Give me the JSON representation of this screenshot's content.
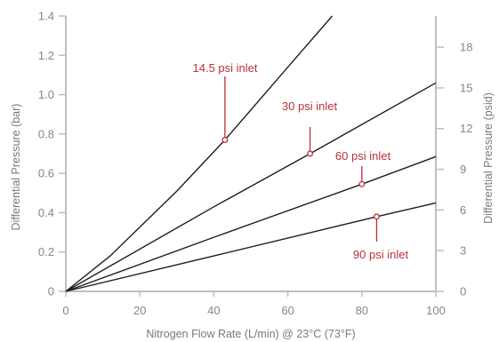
{
  "chart_data": {
    "type": "line",
    "xlabel": "Nitrogen Flow Rate (L/min) @ 23°C (73°F)",
    "ylabel": "Differential Pressure (bar)",
    "y2label": "Differential Pressure (psid)",
    "xlim": [
      0,
      100
    ],
    "ylim": [
      0,
      1.4
    ],
    "y2lim": [
      0,
      20.3
    ],
    "xticks": [
      "0",
      "20",
      "40",
      "60",
      "80",
      "100"
    ],
    "yticks": [
      "0",
      "0.2",
      "0.4",
      "0.6",
      "0.8",
      "1.0",
      "1.2",
      "1.4"
    ],
    "y2ticks": [
      "0",
      "3",
      "6",
      "9",
      "12",
      "15",
      "18"
    ],
    "grid": false,
    "legend": "none",
    "series": [
      {
        "name": "14.5 psi inlet",
        "x": [
          0,
          12,
          30,
          43,
          60,
          72
        ],
        "y": [
          0,
          0.18,
          0.51,
          0.77,
          1.14,
          1.4
        ],
        "label_point": [
          43,
          0.77
        ]
      },
      {
        "name": "30 psi inlet",
        "x": [
          0,
          40,
          66,
          100
        ],
        "y": [
          0,
          0.43,
          0.7,
          1.06
        ],
        "label_point": [
          66,
          0.7
        ]
      },
      {
        "name": "60 psi inlet",
        "x": [
          0,
          40,
          80,
          100
        ],
        "y": [
          0,
          0.275,
          0.545,
          0.685
        ],
        "label_point": [
          80,
          0.545
        ]
      },
      {
        "name": "90 psi inlet",
        "x": [
          0,
          40,
          84,
          100
        ],
        "y": [
          0,
          0.18,
          0.38,
          0.45
        ],
        "label_point": [
          84,
          0.38
        ]
      }
    ],
    "colors": {
      "curve": "#1e1e1e",
      "annotation": "#b8313c",
      "axis": "#c5beb6",
      "text": "#8a8580"
    }
  }
}
